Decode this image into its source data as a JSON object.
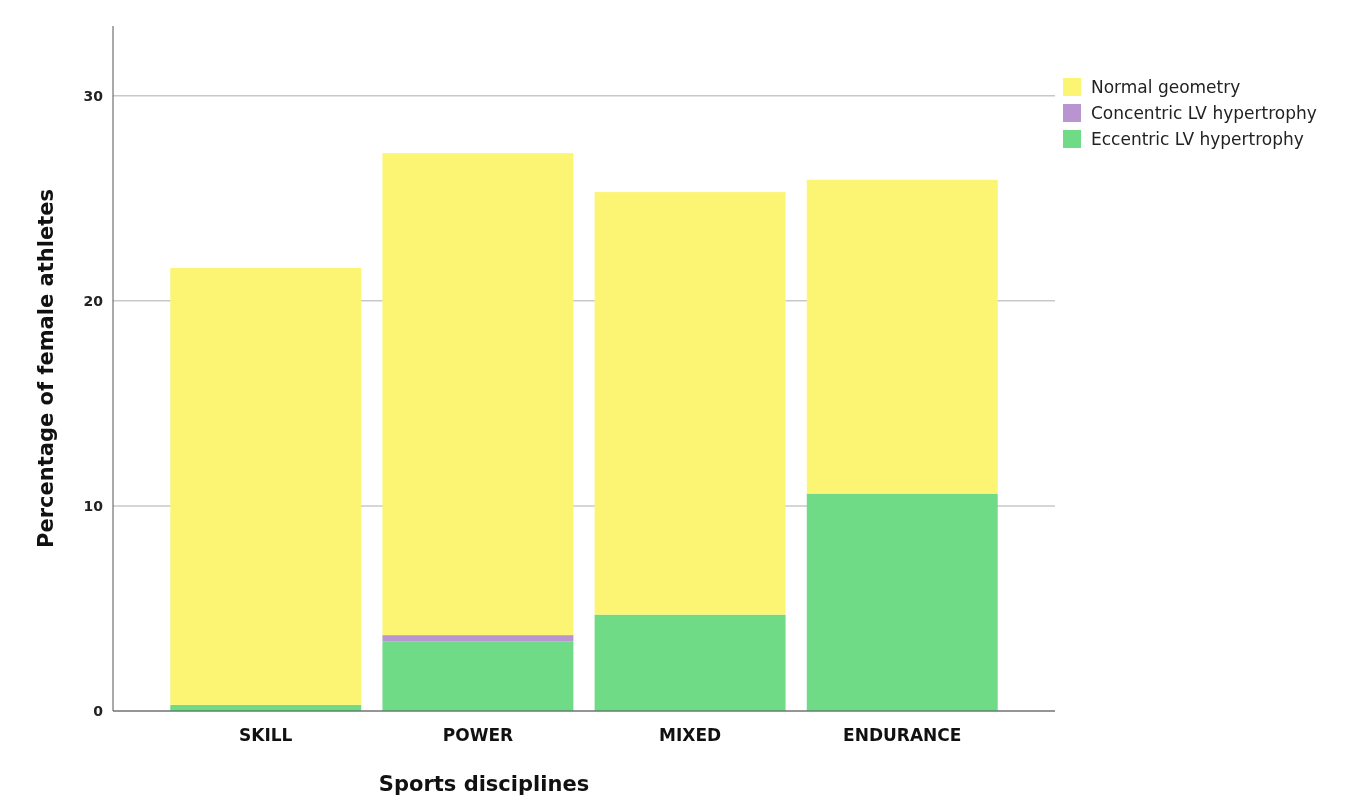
{
  "chart_data": {
    "type": "bar",
    "stacked": true,
    "xlabel": "Sports disciplines",
    "ylabel": "Percentage of female athletes",
    "categories": [
      "SKILL",
      "POWER",
      "MIXED",
      "ENDURANCE"
    ],
    "series": [
      {
        "name": "Eccentric LV hypertrophy",
        "color": "#6fdb86",
        "values": [
          0.3,
          3.4,
          4.7,
          10.6
        ]
      },
      {
        "name": "Concentric LV hypertrophy",
        "color": "#b894d0",
        "values": [
          0,
          0.3,
          0,
          0
        ]
      },
      {
        "name": "Normal geometry",
        "color": "#fbf573",
        "values": [
          21.3,
          23.5,
          20.6,
          15.3
        ]
      }
    ],
    "ylim": [
      0,
      33.4
    ],
    "yticks": [
      0,
      10,
      20,
      30
    ],
    "grid": "y",
    "legend": "top right"
  }
}
